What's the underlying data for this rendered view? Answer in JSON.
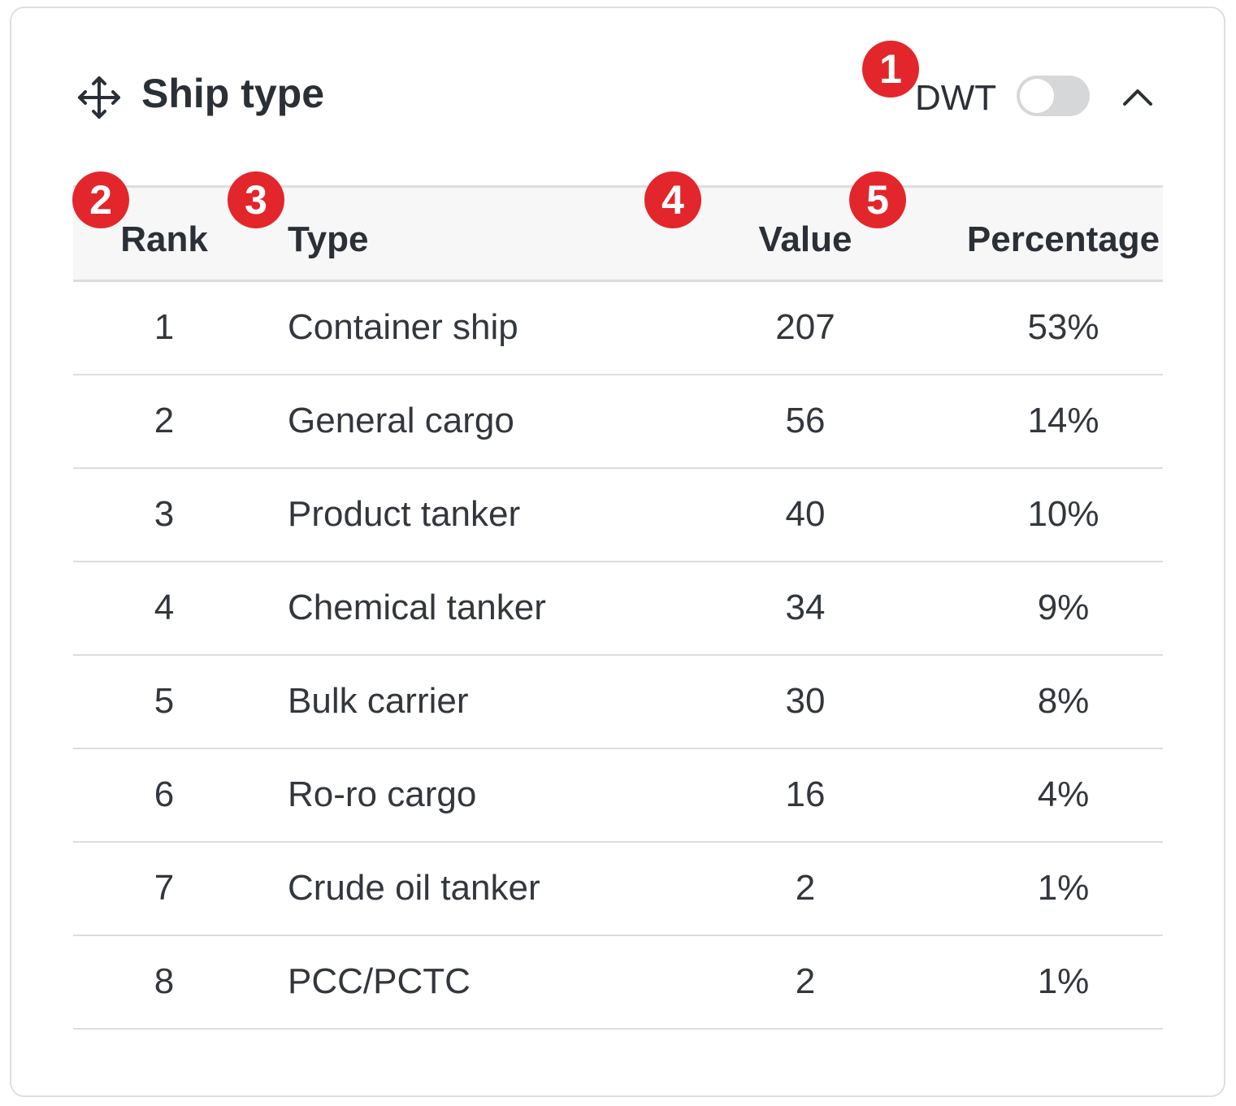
{
  "header": {
    "title": "Ship type",
    "toggle_label": "DWT",
    "toggle_on": false
  },
  "table": {
    "columns": [
      "Rank",
      "Type",
      "Value",
      "Percentage"
    ],
    "rows": [
      {
        "rank": "1",
        "type": "Container ship",
        "value": "207",
        "pct": "53%"
      },
      {
        "rank": "2",
        "type": "General cargo",
        "value": "56",
        "pct": "14%"
      },
      {
        "rank": "3",
        "type": "Product tanker",
        "value": "40",
        "pct": "10%"
      },
      {
        "rank": "4",
        "type": "Chemical tanker",
        "value": "34",
        "pct": "9%"
      },
      {
        "rank": "5",
        "type": "Bulk carrier",
        "value": "30",
        "pct": "8%"
      },
      {
        "rank": "6",
        "type": "Ro-ro cargo",
        "value": "16",
        "pct": "4%"
      },
      {
        "rank": "7",
        "type": "Crude oil tanker",
        "value": "2",
        "pct": "1%"
      },
      {
        "rank": "8",
        "type": "PCC/PCTC",
        "value": "2",
        "pct": "1%"
      }
    ]
  },
  "badges": [
    "1",
    "2",
    "3",
    "4",
    "5"
  ],
  "colors": {
    "badge": "#e3262b",
    "toggle_off": "#d6d7d9"
  }
}
